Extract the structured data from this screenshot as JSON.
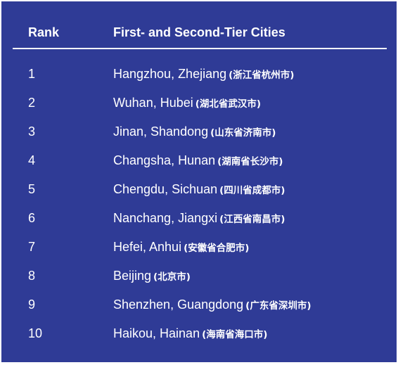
{
  "header": {
    "rank_label": "Rank",
    "cities_label": "First- and Second-Tier Cities"
  },
  "rows": [
    {
      "rank": "1",
      "city": "Hangzhou, Zhejiang",
      "chinese": "(浙江省杭州市)"
    },
    {
      "rank": "2",
      "city": "Wuhan, Hubei",
      "chinese": "(湖北省武汉市)"
    },
    {
      "rank": "3",
      "city": "Jinan, Shandong",
      "chinese": "(山东省济南市)"
    },
    {
      "rank": "4",
      "city": "Changsha, Hunan",
      "chinese": "(湖南省长沙市)"
    },
    {
      "rank": "5",
      "city": "Chengdu, Sichuan",
      "chinese": "(四川省成都市)"
    },
    {
      "rank": "6",
      "city": "Nanchang, Jiangxi",
      "chinese": "(江西省南昌市)"
    },
    {
      "rank": "7",
      "city": "Hefei, Anhui",
      "chinese": "(安徽省合肥市)"
    },
    {
      "rank": "8",
      "city": "Beijing",
      "chinese": "(北京市)"
    },
    {
      "rank": "9",
      "city": "Shenzhen, Guangdong",
      "chinese": "(广东省深圳市)"
    },
    {
      "rank": "10",
      "city": "Haikou, Hainan",
      "chinese": "(海南省海口市)"
    }
  ],
  "colors": {
    "background": "#2f3b96",
    "text": "#ffffff"
  }
}
